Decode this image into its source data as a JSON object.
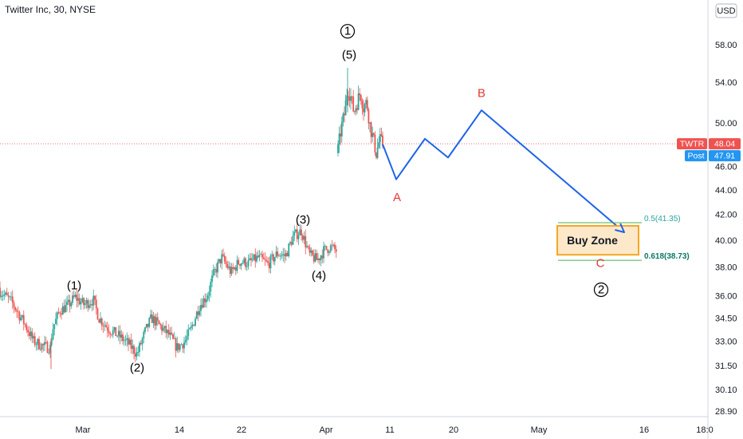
{
  "header": {
    "title": "Twitter Inc, 30, NYSE"
  },
  "currency_button": {
    "label": "USD"
  },
  "price_badges": [
    {
      "name": "TWTR",
      "value": "48.04",
      "price": 48.04,
      "color": "#ef5350"
    },
    {
      "name": "Post",
      "value": "47.91",
      "price": 47.91,
      "color": "#2196f3"
    }
  ],
  "colors": {
    "up": "#26a69a",
    "down": "#ef5350",
    "projection": "#1e63e9",
    "fib_line": "#4caf50",
    "fib_text_05": "#26a69a",
    "fib_text_0618": "#0b7a62",
    "zone_fill": "#fde9c9",
    "zone_border": "#f5a623",
    "correction_label": "#e53935"
  },
  "chart_data": {
    "type": "candlestick",
    "title": "Twitter Inc, 30, NYSE",
    "y_scale": "log",
    "ylim": [
      28.2,
      61.5
    ],
    "y_ticks": [
      "58.00",
      "54.00",
      "50.00",
      "46.00",
      "44.00",
      "42.00",
      "40.00",
      "38.00",
      "36.00",
      "34.50",
      "33.00",
      "31.50",
      "30.10",
      "28.90"
    ],
    "x_ticks": [
      "Mar",
      "14",
      "22",
      "Apr",
      "11",
      "20",
      "May",
      "16",
      "18:0"
    ],
    "last_price": 48.04,
    "post_price": 47.91,
    "price_path": [
      [
        0,
        36.3
      ],
      [
        14,
        35.6
      ],
      [
        30,
        34.2
      ],
      [
        42,
        33.0
      ],
      [
        54,
        32.7
      ],
      [
        63,
        32.6
      ],
      [
        66,
        33.8
      ],
      [
        75,
        35.0
      ],
      [
        85,
        35.3
      ],
      [
        94,
        35.9
      ],
      [
        105,
        35.4
      ],
      [
        117,
        35.7
      ],
      [
        124,
        34.5
      ],
      [
        136,
        33.8
      ],
      [
        150,
        33.3
      ],
      [
        162,
        32.8
      ],
      [
        172,
        32.2
      ],
      [
        182,
        33.6
      ],
      [
        190,
        34.5
      ],
      [
        200,
        34.0
      ],
      [
        212,
        33.4
      ],
      [
        222,
        32.6
      ],
      [
        232,
        33.0
      ],
      [
        240,
        33.8
      ],
      [
        250,
        35.3
      ],
      [
        260,
        36.0
      ],
      [
        268,
        37.5
      ],
      [
        278,
        38.7
      ],
      [
        290,
        37.6
      ],
      [
        300,
        38.4
      ],
      [
        312,
        38.3
      ],
      [
        324,
        38.7
      ],
      [
        336,
        38.2
      ],
      [
        348,
        39.0
      ],
      [
        358,
        38.8
      ],
      [
        368,
        40.3
      ],
      [
        378,
        40.7
      ],
      [
        388,
        38.9
      ],
      [
        398,
        38.5
      ],
      [
        406,
        39.2
      ],
      [
        414,
        39.5
      ],
      [
        422,
        39.2
      ]
    ],
    "price_path_2": [
      [
        424,
        47.5
      ],
      [
        428,
        49.5
      ],
      [
        432,
        50.8
      ],
      [
        436,
        53.5
      ],
      [
        440,
        52.5
      ],
      [
        444,
        51.0
      ],
      [
        448,
        52.0
      ],
      [
        452,
        53.0
      ],
      [
        456,
        51.5
      ],
      [
        460,
        52.0
      ],
      [
        464,
        49.8
      ],
      [
        468,
        48.5
      ],
      [
        472,
        47.2
      ],
      [
        476,
        48.4
      ],
      [
        480,
        48.0
      ]
    ],
    "projection": [
      [
        480,
        48.0
      ],
      [
        497,
        44.9
      ],
      [
        533,
        48.5
      ],
      [
        562,
        46.8
      ],
      [
        604,
        51.2
      ],
      [
        783,
        40.6
      ]
    ],
    "wave_labels": [
      {
        "text": "(1)",
        "date": "Feb 24",
        "price": 36.7
      },
      {
        "text": "(2)",
        "date": "Mar 10",
        "price": 31.4
      },
      {
        "text": "(3)",
        "date": "Mar 31",
        "price": 41.6
      },
      {
        "text": "(4)",
        "date": "Apr 1",
        "price": 37.4
      },
      {
        "text": "(5)",
        "date": "Apr 5",
        "price": 56.9
      }
    ],
    "degree_labels": [
      {
        "text": "1",
        "date": "Apr 5",
        "price": 59.5
      },
      {
        "text": "2",
        "date": "May 11",
        "price": 36.4
      }
    ],
    "correction_labels": [
      {
        "text": "A",
        "price": 43.4
      },
      {
        "text": "B",
        "price": 52.9
      },
      {
        "text": "C",
        "price": 38.3
      }
    ],
    "fib_levels": [
      {
        "label": "0.5(41.35)",
        "price": 41.35
      },
      {
        "label": "0.618(38.73)",
        "price": 38.73
      }
    ],
    "annotations": [
      {
        "text": "Buy Zone",
        "price_top": 41.1,
        "price_bottom": 38.9
      }
    ]
  }
}
